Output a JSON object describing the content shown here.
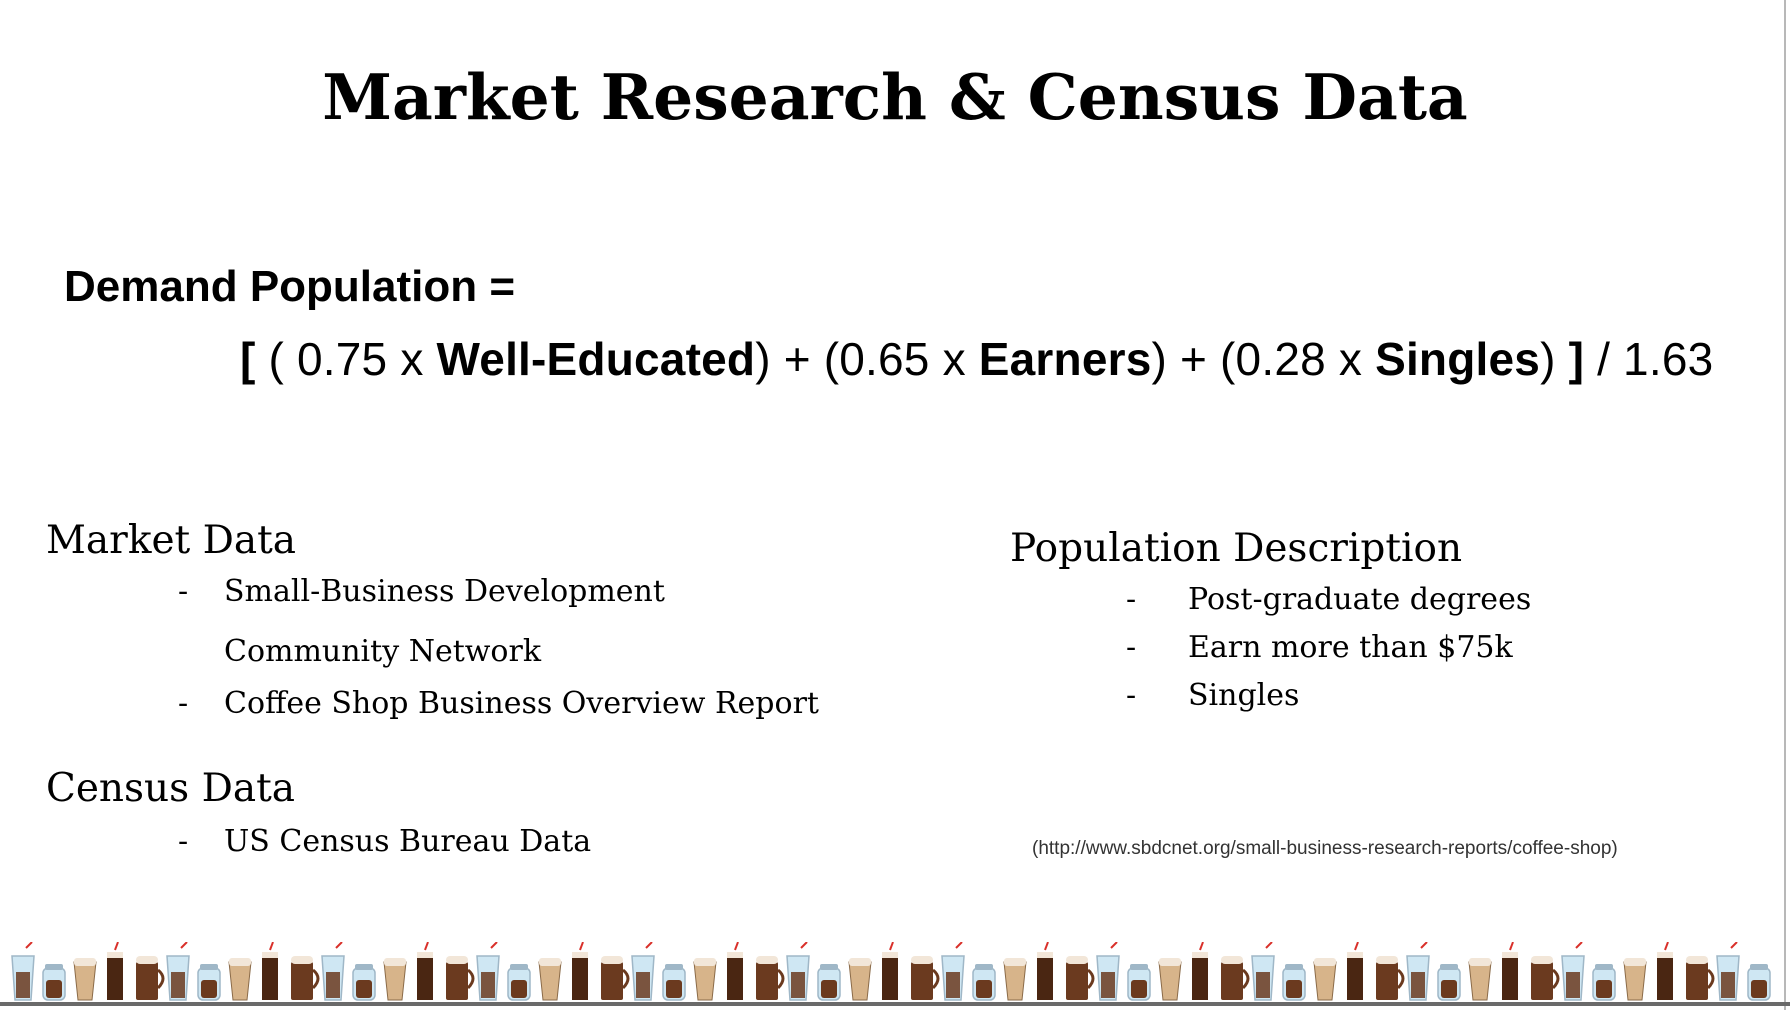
{
  "slide": {
    "title": "Market Research & Census Data",
    "demand_label": "Demand Population =",
    "formula": {
      "open_bracket": "[",
      "p1_open": " ( 0.75 x ",
      "term1": "Well-Educated",
      "p1_close": ") + (0.65 x ",
      "term2": "Earners",
      "p2_close": ") + (0.28 x ",
      "term3": "Singles",
      "p3_close": ") ",
      "close_bracket": "]",
      "divisor": " /  1.63"
    },
    "market_data": {
      "heading": "Market Data",
      "bullet": "-",
      "items": [
        "Small-Business Development",
        "Community Network",
        "Coffee Shop Business Overview Report"
      ]
    },
    "census_data": {
      "heading": "Census Data",
      "bullet": "-",
      "items": [
        "US Census Bureau Data"
      ]
    },
    "population_description": {
      "heading": "Population Description",
      "bullet": "-",
      "items": [
        "Post-graduate degrees",
        "Earn more than $75k",
        "Singles"
      ]
    },
    "source_url": "(http://www.sbdcnet.org/small-business-research-reports/coffee-shop)"
  },
  "footer": {
    "decoration": "coffee-cups-border-icon",
    "colors": {
      "coffee": "#6b3a1f",
      "foam": "#f2e6d8",
      "iced": "#cfe7f3",
      "straw": "#d9302a",
      "glass": "#9fb7c7"
    }
  }
}
